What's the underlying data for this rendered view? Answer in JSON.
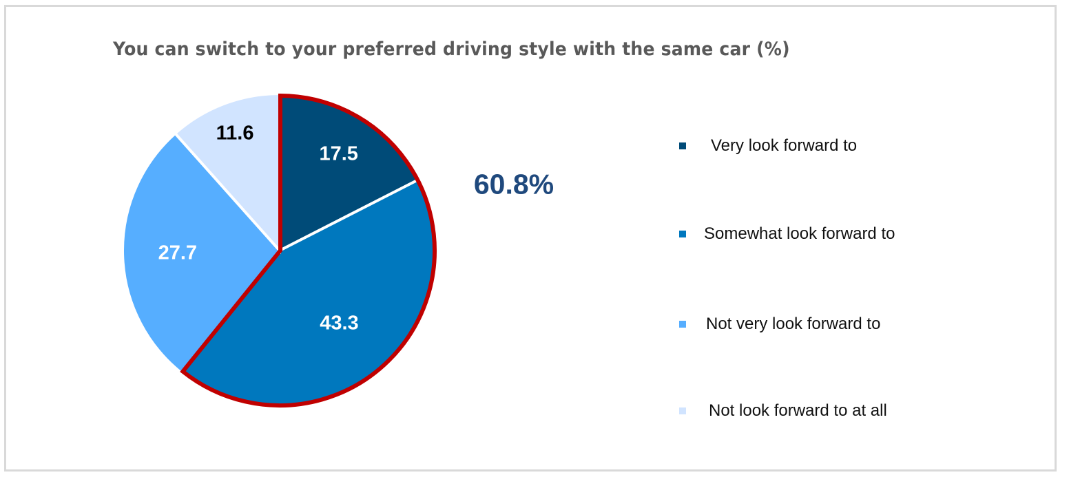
{
  "chart_data": {
    "type": "pie",
    "title": "You can switch to your preferred driving style with the same car (%)",
    "categories": [
      "Very look forward to",
      "Somewhat look forward to",
      "Not very look forward to",
      "Not look forward to at all"
    ],
    "values": [
      17.5,
      43.3,
      27.7,
      11.6
    ],
    "value_labels": [
      "17.5",
      "43.3",
      "27.7",
      "11.6"
    ],
    "colors": [
      "#004b78",
      "#0078be",
      "#56aeff",
      "#d1e4ff"
    ],
    "label_colors": [
      "#ffffff",
      "#ffffff",
      "#ffffff",
      "#000000"
    ],
    "start_angle_deg": 0,
    "direction": "clockwise",
    "highlight": {
      "slices": [
        "Very look forward to",
        "Somewhat look forward to"
      ],
      "outline_color": "#c00000",
      "annotation": "60.8%",
      "annotation_color": "#1f497d"
    },
    "legend_position": "right"
  },
  "legend": {
    "items": [
      {
        "label": "Very look forward to",
        "color": "#004b78"
      },
      {
        "label": "Somewhat look forward to",
        "color": "#0078be"
      },
      {
        "label": "Not very look forward to",
        "color": "#56aeff"
      },
      {
        "label": "Not look forward to at all",
        "color": "#d1e4ff"
      }
    ]
  }
}
